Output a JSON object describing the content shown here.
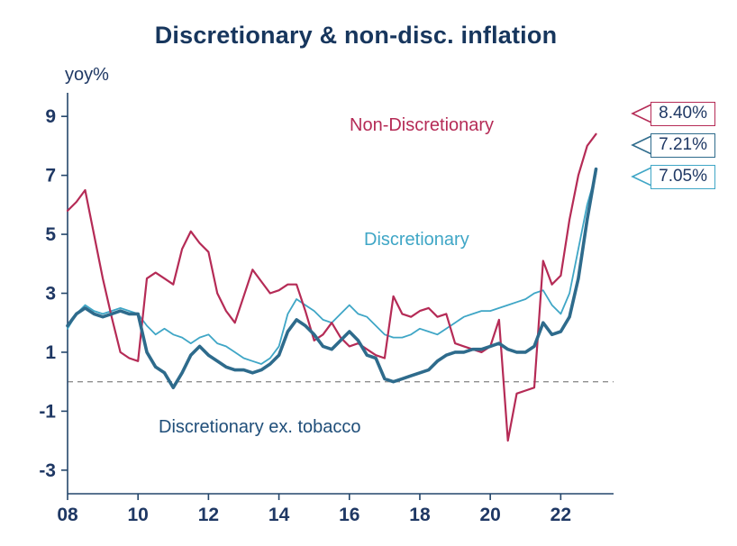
{
  "chart_data": {
    "type": "line",
    "title": "Discretionary & non-disc. inflation",
    "ylabel": "yoy%",
    "xlabel": "",
    "xlim": [
      2008,
      2023.5
    ],
    "ylim": [
      -3.8,
      9.8
    ],
    "xticks": [
      2008,
      2010,
      2012,
      2014,
      2016,
      2018,
      2020,
      2022
    ],
    "xtick_labels": [
      "08",
      "10",
      "12",
      "14",
      "16",
      "18",
      "20",
      "22"
    ],
    "yticks": [
      -3,
      -1,
      1,
      3,
      5,
      7,
      9
    ],
    "axis_color": "#24466b",
    "text_color": "#1f3864",
    "zero_line": {
      "y": 0,
      "style": "dashed",
      "color": "#8f8f8f"
    },
    "legend_position": "inline-annotations",
    "grid": false,
    "x": [
      2008,
      2008.25,
      2008.5,
      2008.75,
      2009,
      2009.25,
      2009.5,
      2009.75,
      2010,
      2010.25,
      2010.5,
      2010.75,
      2011,
      2011.25,
      2011.5,
      2011.75,
      2012,
      2012.25,
      2012.5,
      2012.75,
      2013,
      2013.25,
      2013.5,
      2013.75,
      2014,
      2014.25,
      2014.5,
      2014.75,
      2015,
      2015.25,
      2015.5,
      2015.75,
      2016,
      2016.25,
      2016.5,
      2016.75,
      2017,
      2017.25,
      2017.5,
      2017.75,
      2018,
      2018.25,
      2018.5,
      2018.75,
      2019,
      2019.25,
      2019.5,
      2019.75,
      2020,
      2020.25,
      2020.5,
      2020.75,
      2021,
      2021.25,
      2021.5,
      2021.75,
      2022,
      2022.25,
      2022.5,
      2022.75,
      2023
    ],
    "series": [
      {
        "name": "Non-Discretionary",
        "color": "#b52b56",
        "width": 2.2,
        "end_label": "8.40%",
        "values": [
          5.8,
          6.1,
          6.5,
          5.0,
          3.5,
          2.2,
          1.0,
          0.8,
          0.7,
          3.5,
          3.7,
          3.5,
          3.3,
          4.5,
          5.1,
          4.7,
          4.4,
          3.0,
          2.4,
          2.0,
          2.9,
          3.8,
          3.4,
          3.0,
          3.1,
          3.3,
          3.3,
          2.4,
          1.4,
          1.6,
          2.0,
          1.5,
          1.2,
          1.3,
          1.1,
          0.9,
          0.8,
          2.9,
          2.3,
          2.2,
          2.4,
          2.5,
          2.2,
          2.3,
          1.3,
          1.2,
          1.1,
          1.0,
          1.2,
          2.1,
          -2.0,
          -0.4,
          -0.3,
          -0.2,
          4.1,
          3.3,
          3.6,
          5.5,
          7.0,
          8.0,
          8.4
        ]
      },
      {
        "name": "Discretionary",
        "color": "#3fa6c6",
        "width": 1.8,
        "end_label": "7.05%",
        "values": [
          1.8,
          2.3,
          2.6,
          2.4,
          2.3,
          2.4,
          2.5,
          2.4,
          2.3,
          1.9,
          1.6,
          1.8,
          1.6,
          1.5,
          1.3,
          1.5,
          1.6,
          1.3,
          1.2,
          1.0,
          0.8,
          0.7,
          0.6,
          0.8,
          1.2,
          2.3,
          2.8,
          2.6,
          2.4,
          2.1,
          2.0,
          2.3,
          2.6,
          2.3,
          2.2,
          1.9,
          1.6,
          1.5,
          1.5,
          1.6,
          1.8,
          1.7,
          1.6,
          1.8,
          2.0,
          2.2,
          2.3,
          2.4,
          2.4,
          2.5,
          2.6,
          2.7,
          2.8,
          3.0,
          3.1,
          2.6,
          2.3,
          3.0,
          4.5,
          6.0,
          7.05
        ]
      },
      {
        "name": "Discretionary ex. tobacco",
        "color": "#2e6b8c",
        "width": 3.6,
        "end_label": "7.21%",
        "values": [
          1.9,
          2.3,
          2.5,
          2.3,
          2.2,
          2.3,
          2.4,
          2.3,
          2.3,
          1.0,
          0.5,
          0.3,
          -0.2,
          0.3,
          0.9,
          1.2,
          0.9,
          0.7,
          0.5,
          0.4,
          0.4,
          0.3,
          0.4,
          0.6,
          0.9,
          1.7,
          2.1,
          1.9,
          1.6,
          1.2,
          1.1,
          1.4,
          1.7,
          1.4,
          0.9,
          0.8,
          0.1,
          0.0,
          0.1,
          0.2,
          0.3,
          0.4,
          0.7,
          0.9,
          1.0,
          1.0,
          1.1,
          1.1,
          1.2,
          1.3,
          1.1,
          1.0,
          1.0,
          1.2,
          2.0,
          1.6,
          1.7,
          2.2,
          3.5,
          5.5,
          7.21
        ]
      }
    ],
    "annotations": [
      {
        "text": "Non-Discretionary",
        "color": "#b52b56"
      },
      {
        "text": "Discretionary",
        "color": "#3fa6c6"
      },
      {
        "text": "Discretionary ex. tobacco",
        "color": "#1f4e79"
      }
    ],
    "callouts": [
      {
        "label": "8.40%",
        "color": "#b52b56",
        "series": "Non-Discretionary"
      },
      {
        "label": "7.21%",
        "color": "#2e6b8c",
        "series": "Discretionary ex. tobacco"
      },
      {
        "label": "7.05%",
        "color": "#3fa6c6",
        "series": "Discretionary"
      }
    ]
  }
}
